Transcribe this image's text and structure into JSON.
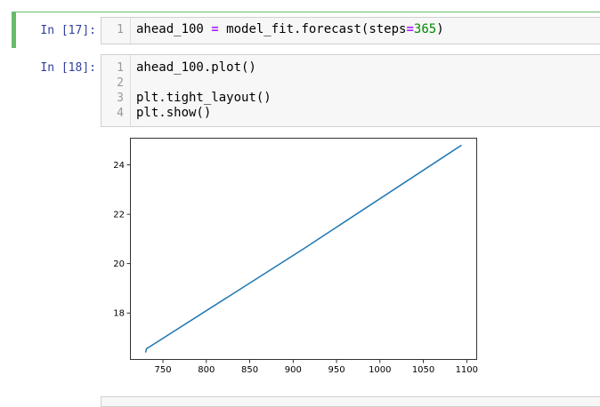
{
  "cells": [
    {
      "prompt": "In [17]:",
      "lines": [
        {
          "num": "1",
          "tokens": [
            "ahead_100 ",
            "=",
            " model_fit.forecast",
            "(",
            "steps",
            "=",
            "365",
            ")"
          ]
        }
      ]
    },
    {
      "prompt": "In [18]:",
      "lines": [
        {
          "num": "1",
          "text": "ahead_100.plot()"
        },
        {
          "num": "2",
          "text": ""
        },
        {
          "num": "3",
          "text": "plt.tight_layout()"
        },
        {
          "num": "4",
          "text": "plt.show()"
        }
      ]
    }
  ],
  "colors": {
    "prompt": "#303f9f",
    "selected_cell_bar": "#66bb6a",
    "line_series": "#1f77b4",
    "operator": "#aa22ff",
    "number": "#008800"
  },
  "chart_data": {
    "type": "line",
    "title": "",
    "xlabel": "",
    "ylabel": "",
    "xlim": [
      712,
      1112
    ],
    "ylim": [
      16.1,
      25.1
    ],
    "xticks": [
      750,
      800,
      850,
      900,
      950,
      1000,
      1050,
      1100
    ],
    "yticks": [
      18,
      20,
      22,
      24
    ],
    "x_tick_labels": [
      "750",
      "800",
      "850",
      "900",
      "950",
      "1000",
      "1050",
      "1100"
    ],
    "y_tick_labels": [
      "18",
      "20",
      "22",
      "24"
    ],
    "series": [
      {
        "x": [
          730,
          731,
          912,
          1094
        ],
        "y": [
          16.4,
          16.55,
          20.6,
          24.8
        ]
      }
    ],
    "grid": false
  }
}
